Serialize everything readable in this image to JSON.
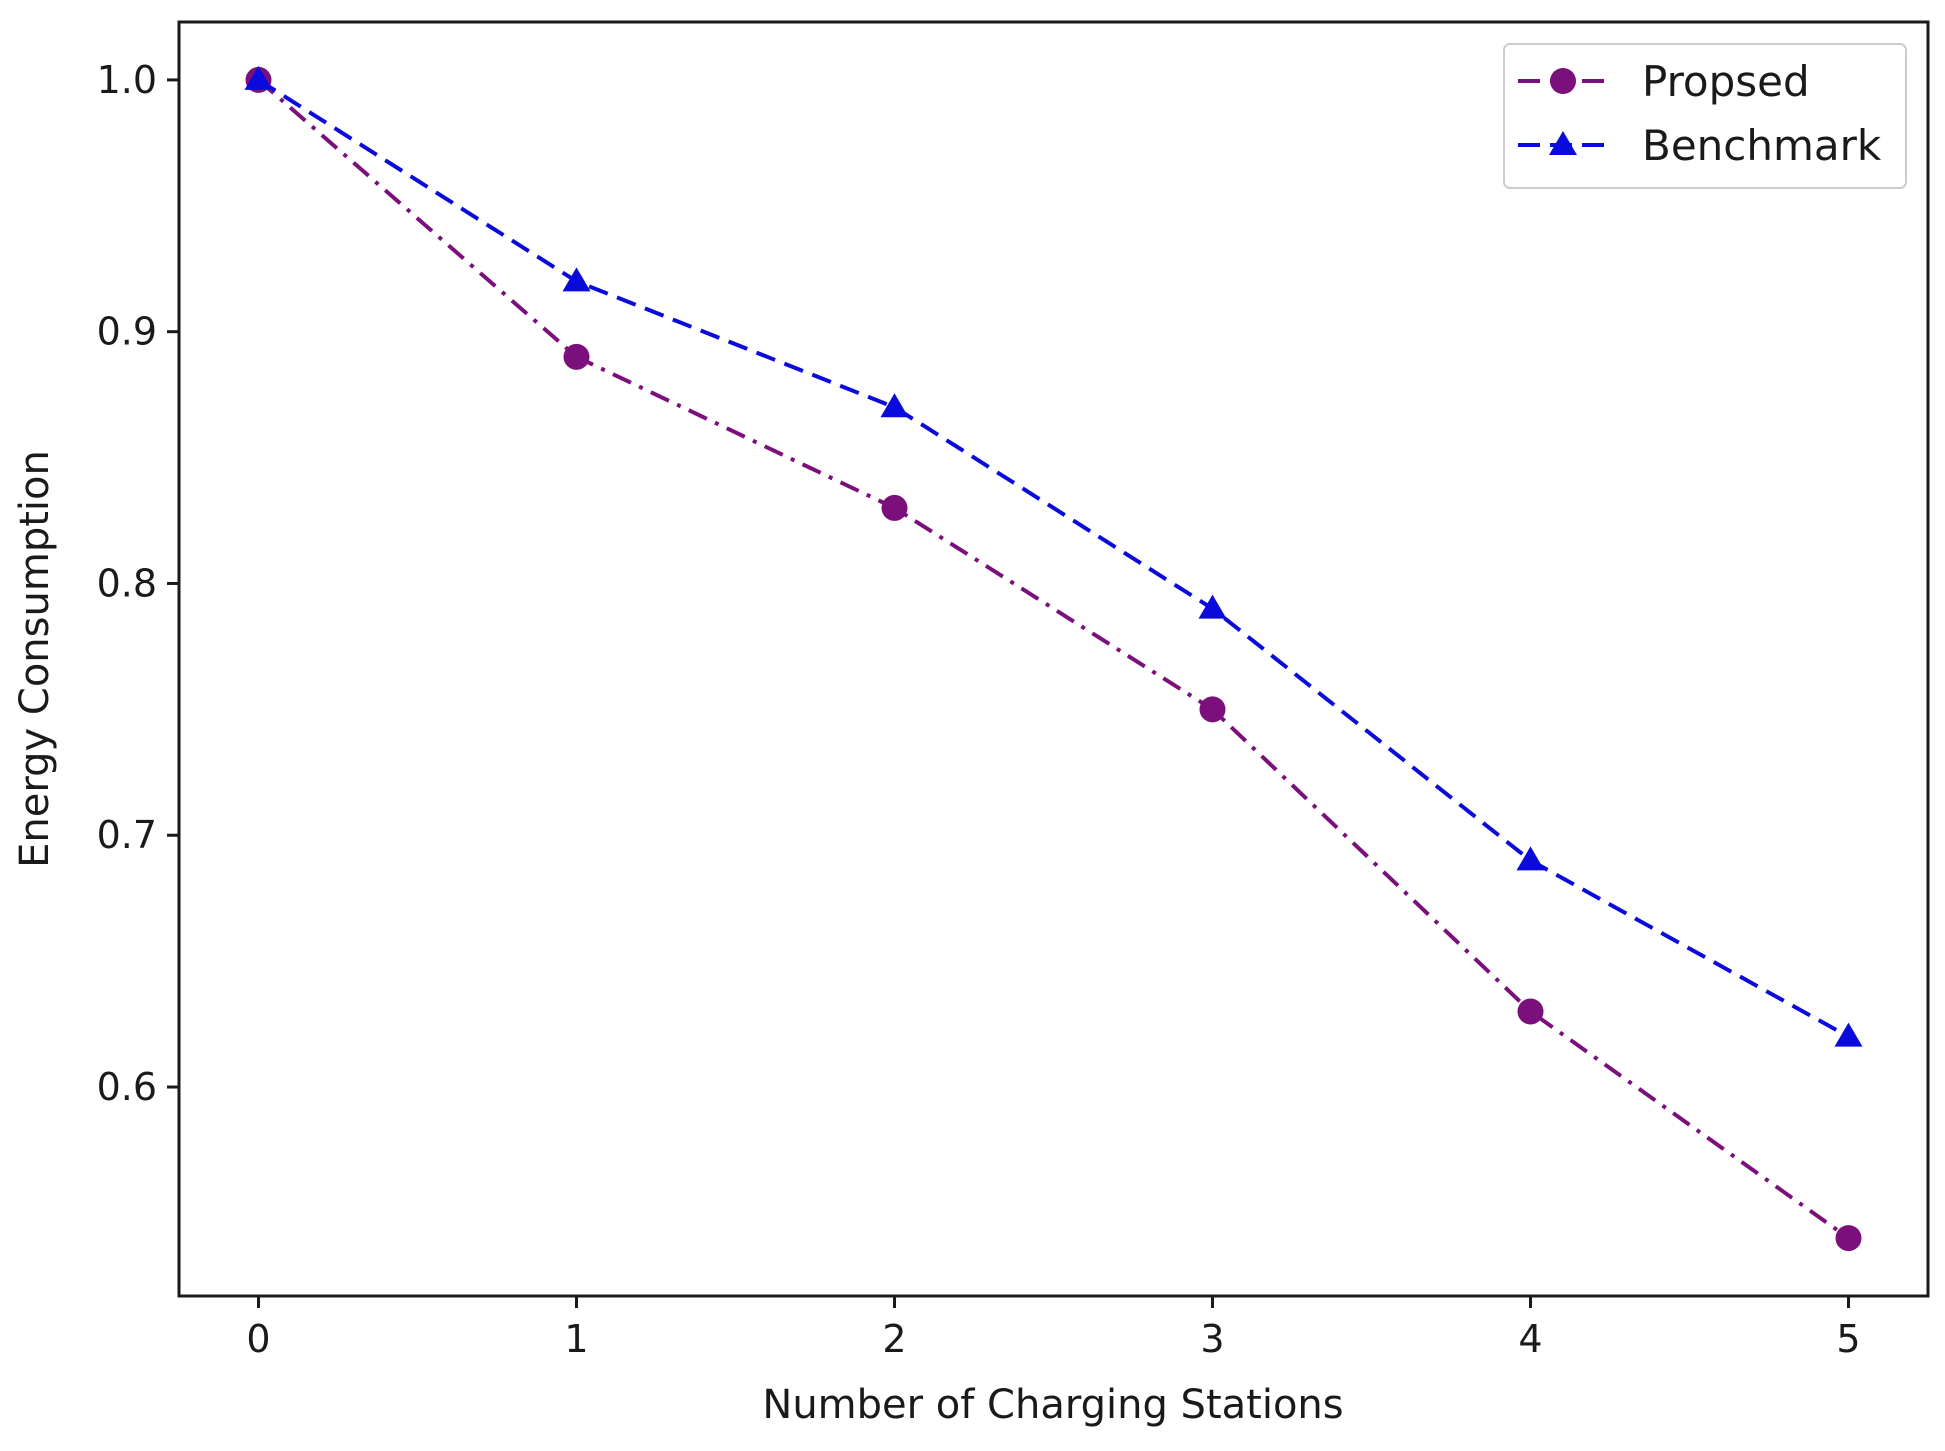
{
  "chart_data": {
    "type": "line",
    "title": "",
    "xlabel": "Number of Charging Stations",
    "ylabel": "Energy Consumption",
    "x": [
      0,
      1,
      2,
      3,
      4,
      5
    ],
    "xlim": [
      -0.25,
      5.25
    ],
    "ylim": [
      0.517,
      1.023
    ],
    "xticks": [
      0,
      1,
      2,
      3,
      4,
      5
    ],
    "yticks": [
      0.6,
      0.7,
      0.8,
      0.9,
      1.0
    ],
    "ytick_labels": [
      "0.6",
      "0.7",
      "0.8",
      "0.9",
      "1.0"
    ],
    "grid": false,
    "legend_position": "top-right",
    "series": [
      {
        "name": "Propsed",
        "values": [
          1.0,
          0.89,
          0.83,
          0.75,
          0.63,
          0.54
        ],
        "color": "#7b0f7b",
        "marker": "circle",
        "line_style": "dash-dot"
      },
      {
        "name": "Benchmark",
        "values": [
          1.0,
          0.92,
          0.87,
          0.79,
          0.69,
          0.62
        ],
        "color": "#0a0adc",
        "marker": "triangle",
        "line_style": "dashed"
      }
    ]
  }
}
